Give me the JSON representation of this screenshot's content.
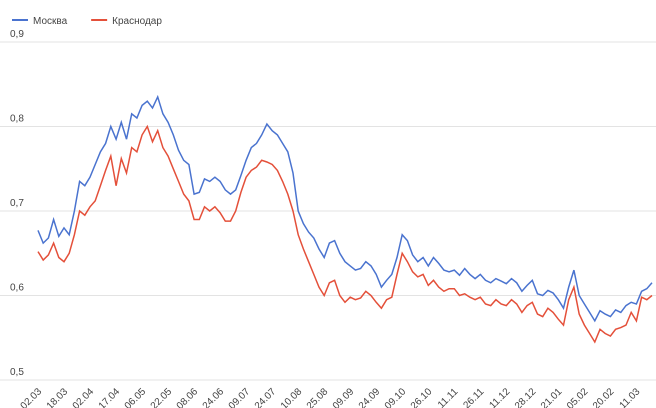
{
  "chart_data": {
    "type": "line",
    "categories": [
      "02.03",
      null,
      null,
      null,
      null,
      "18.03",
      null,
      null,
      null,
      null,
      "02.04",
      null,
      null,
      null,
      null,
      "17.04",
      null,
      null,
      null,
      null,
      "06.05",
      null,
      null,
      null,
      null,
      "22.05",
      null,
      null,
      null,
      null,
      "08.06",
      null,
      null,
      null,
      null,
      "24.06",
      null,
      null,
      null,
      null,
      "09.07",
      null,
      null,
      null,
      null,
      "24.07",
      null,
      null,
      null,
      null,
      "10.08",
      null,
      null,
      null,
      null,
      "25.08",
      null,
      null,
      null,
      null,
      "09.09",
      null,
      null,
      null,
      null,
      "24.09",
      null,
      null,
      null,
      null,
      "09.10",
      null,
      null,
      null,
      null,
      "26.10",
      null,
      null,
      null,
      null,
      "11.11",
      null,
      null,
      null,
      null,
      "26.11",
      null,
      null,
      null,
      null,
      "11.12",
      null,
      null,
      null,
      null,
      "28.12",
      null,
      null,
      null,
      null,
      "21.01",
      null,
      null,
      null,
      null,
      "05.02",
      null,
      null,
      null,
      null,
      "20.02",
      null,
      null,
      null,
      null,
      "11.03",
      null,
      null,
      null
    ],
    "series": [
      {
        "name": "Москва",
        "color": "#4a73cf",
        "values": [
          0.677,
          0.662,
          0.668,
          0.69,
          0.67,
          0.68,
          0.672,
          0.7,
          0.735,
          0.73,
          0.74,
          0.755,
          0.77,
          0.78,
          0.8,
          0.785,
          0.805,
          0.785,
          0.815,
          0.81,
          0.825,
          0.83,
          0.822,
          0.835,
          0.815,
          0.805,
          0.79,
          0.772,
          0.76,
          0.755,
          0.72,
          0.722,
          0.738,
          0.735,
          0.74,
          0.735,
          0.725,
          0.72,
          0.725,
          0.742,
          0.76,
          0.775,
          0.78,
          0.79,
          0.803,
          0.795,
          0.79,
          0.78,
          0.77,
          0.745,
          0.7,
          0.685,
          0.675,
          0.668,
          0.655,
          0.645,
          0.662,
          0.665,
          0.65,
          0.64,
          0.635,
          0.63,
          0.632,
          0.64,
          0.635,
          0.625,
          0.61,
          0.618,
          0.625,
          0.645,
          0.672,
          0.665,
          0.648,
          0.64,
          0.645,
          0.635,
          0.645,
          0.638,
          0.63,
          0.628,
          0.63,
          0.624,
          0.632,
          0.625,
          0.62,
          0.625,
          0.618,
          0.615,
          0.62,
          0.617,
          0.614,
          0.62,
          0.615,
          0.605,
          0.612,
          0.618,
          0.602,
          0.6,
          0.606,
          0.603,
          0.595,
          0.585,
          0.61,
          0.63,
          0.6,
          0.59,
          0.58,
          0.57,
          0.582,
          0.578,
          0.575,
          0.583,
          0.58,
          0.588,
          0.592,
          0.59,
          0.605,
          0.608,
          0.615
        ]
      },
      {
        "name": "Краснодар",
        "color": "#e4503a",
        "values": [
          0.652,
          0.642,
          0.648,
          0.662,
          0.645,
          0.64,
          0.65,
          0.672,
          0.7,
          0.695,
          0.705,
          0.712,
          0.73,
          0.748,
          0.765,
          0.73,
          0.762,
          0.745,
          0.775,
          0.77,
          0.79,
          0.8,
          0.782,
          0.795,
          0.775,
          0.765,
          0.75,
          0.735,
          0.72,
          0.712,
          0.69,
          0.69,
          0.705,
          0.7,
          0.705,
          0.698,
          0.688,
          0.688,
          0.7,
          0.722,
          0.74,
          0.748,
          0.752,
          0.76,
          0.758,
          0.755,
          0.748,
          0.735,
          0.72,
          0.7,
          0.672,
          0.655,
          0.64,
          0.625,
          0.61,
          0.6,
          0.615,
          0.618,
          0.6,
          0.592,
          0.598,
          0.595,
          0.597,
          0.605,
          0.6,
          0.592,
          0.585,
          0.595,
          0.598,
          0.625,
          0.65,
          0.64,
          0.628,
          0.622,
          0.625,
          0.612,
          0.618,
          0.61,
          0.605,
          0.608,
          0.608,
          0.6,
          0.602,
          0.598,
          0.595,
          0.598,
          0.59,
          0.588,
          0.595,
          0.59,
          0.588,
          0.595,
          0.59,
          0.58,
          0.588,
          0.592,
          0.578,
          0.575,
          0.585,
          0.58,
          0.572,
          0.565,
          0.595,
          0.61,
          0.578,
          0.565,
          0.555,
          0.545,
          0.56,
          0.555,
          0.552,
          0.56,
          0.562,
          0.565,
          0.58,
          0.57,
          0.598,
          0.595,
          0.6
        ]
      }
    ],
    "ylim": [
      0.5,
      0.9
    ],
    "yticks": [
      {
        "value": 0.5,
        "label": "0,5"
      },
      {
        "value": 0.6,
        "label": "0,6"
      },
      {
        "value": 0.7,
        "label": "0,7"
      },
      {
        "value": 0.8,
        "label": "0,8"
      },
      {
        "value": 0.9,
        "label": "0,9"
      }
    ],
    "grid": true,
    "legend": "top-left"
  }
}
